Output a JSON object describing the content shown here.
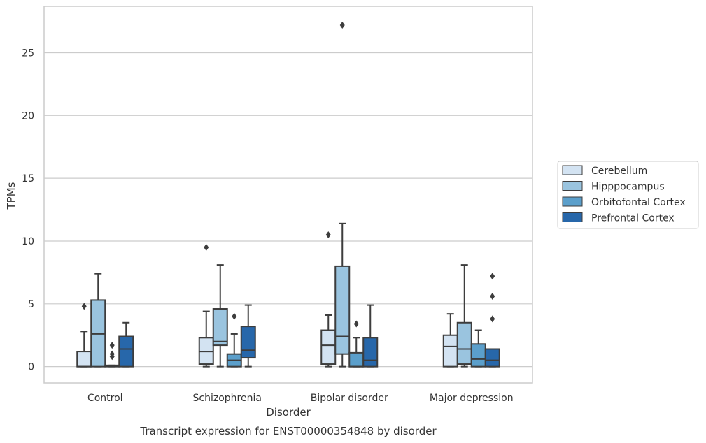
{
  "chart_data": {
    "type": "box",
    "xlabel": "Disorder",
    "ylabel": "TPMs",
    "caption": "Transcript expression for ENST00000354848 by disorder",
    "categories": [
      "Control",
      "Schizophrenia",
      "Bipolar disorder",
      "Major depression"
    ],
    "yticks": [
      0,
      5,
      10,
      15,
      20,
      25
    ],
    "ylim": [
      -1.3,
      28.7
    ],
    "grid": "horizontal",
    "legend_position": "right",
    "series": [
      {
        "name": "Cerebellum",
        "color": "#d3e3f2",
        "boxes": [
          {
            "min": 0,
            "q1": 0,
            "median": 0,
            "q3": 1.2,
            "max": 2.8,
            "outliers": [
              4.8
            ]
          },
          {
            "min": 0,
            "q1": 0.2,
            "median": 1.2,
            "q3": 2.3,
            "max": 4.4,
            "outliers": [
              9.5
            ]
          },
          {
            "min": 0,
            "q1": 0.2,
            "median": 1.7,
            "q3": 2.9,
            "max": 4.1,
            "outliers": [
              10.5
            ]
          },
          {
            "min": 0,
            "q1": 0,
            "median": 1.6,
            "q3": 2.5,
            "max": 4.2,
            "outliers": []
          }
        ]
      },
      {
        "name": "Hipppocampus",
        "color": "#9ac4df",
        "boxes": [
          {
            "min": 0,
            "q1": 0,
            "median": 2.6,
            "q3": 5.3,
            "max": 7.4,
            "outliers": []
          },
          {
            "min": 0,
            "q1": 1.7,
            "median": 2.0,
            "q3": 4.6,
            "max": 8.1,
            "outliers": []
          },
          {
            "min": 0,
            "q1": 1.0,
            "median": 2.4,
            "q3": 8.0,
            "max": 11.4,
            "outliers": [
              27.2
            ]
          },
          {
            "min": 0,
            "q1": 0.2,
            "median": 1.4,
            "q3": 3.5,
            "max": 8.1,
            "outliers": []
          }
        ]
      },
      {
        "name": "Orbitofontal Cortex",
        "color": "#5b9fcb",
        "boxes": [
          {
            "min": 0,
            "q1": 0,
            "median": 0.05,
            "q3": 0.1,
            "max": 0.1,
            "outliers": [
              0.8,
              1.0,
              1.7
            ]
          },
          {
            "min": 0,
            "q1": 0,
            "median": 0.5,
            "q3": 1.0,
            "max": 2.6,
            "outliers": [
              4.0
            ]
          },
          {
            "min": 0,
            "q1": 0,
            "median": 0,
            "q3": 1.1,
            "max": 2.3,
            "outliers": [
              3.4
            ]
          },
          {
            "min": 0,
            "q1": 0,
            "median": 0.6,
            "q3": 1.8,
            "max": 2.9,
            "outliers": []
          }
        ]
      },
      {
        "name": "Prefrontal Cortex",
        "color": "#2767aa",
        "boxes": [
          {
            "min": 0,
            "q1": 0,
            "median": 1.4,
            "q3": 2.4,
            "max": 3.5,
            "outliers": []
          },
          {
            "min": 0,
            "q1": 0.7,
            "median": 1.3,
            "q3": 3.2,
            "max": 4.9,
            "outliers": []
          },
          {
            "min": 0,
            "q1": 0,
            "median": 0.5,
            "q3": 2.3,
            "max": 4.9,
            "outliers": []
          },
          {
            "min": 0,
            "q1": 0,
            "median": 0.5,
            "q3": 1.4,
            "max": 1.4,
            "outliers": [
              3.8,
              5.6,
              7.2
            ]
          }
        ]
      }
    ]
  }
}
